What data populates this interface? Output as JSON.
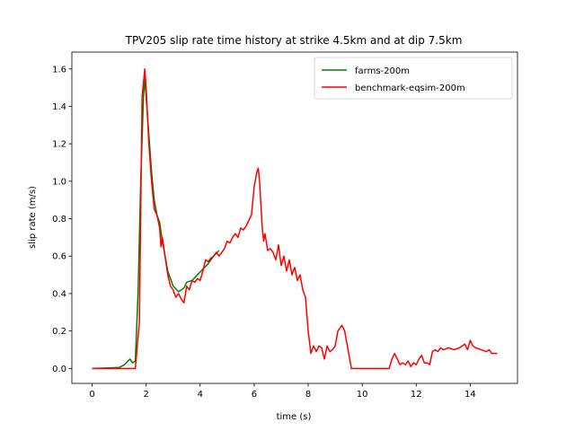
{
  "chart_data": {
    "type": "line",
    "title": "TPV205 slip rate time history at strike 4.5km and at dip 7.5km",
    "x_label": "time (s)",
    "y_label": "slip rate (m/s)",
    "xlim": [
      -0.75,
      15.75
    ],
    "xticks": [
      0,
      2,
      4,
      6,
      8,
      10,
      12,
      14
    ],
    "ylim": [
      -0.08,
      1.69
    ],
    "yticks": [
      {
        "value": 0,
        "label": "0.0"
      },
      0.2,
      0.4,
      0.6,
      0.8,
      {
        "value": 1,
        "label": "1.0"
      },
      1.2,
      1.4,
      1.6
    ],
    "legend": "upper right",
    "series": [
      {
        "name": "farms-200m",
        "color": "#008000",
        "x": [
          0,
          1.0,
          1.2,
          1.4,
          1.5,
          1.6,
          1.7,
          1.8,
          1.9,
          1.95,
          2.0,
          2.1,
          2.2,
          2.3,
          2.4,
          2.5,
          2.6,
          2.7,
          2.8,
          2.9,
          3.0,
          3.2,
          3.4,
          3.5,
          3.7,
          3.9,
          4.1,
          4.3,
          4.5,
          4.7
        ],
        "values": [
          0,
          0.005,
          0.02,
          0.05,
          0.03,
          0.04,
          0.4,
          1.0,
          1.45,
          1.55,
          1.45,
          1.25,
          1.05,
          0.9,
          0.82,
          0.78,
          0.68,
          0.6,
          0.52,
          0.48,
          0.44,
          0.41,
          0.43,
          0.46,
          0.47,
          0.5,
          0.53,
          0.56,
          0.6,
          0.63
        ]
      },
      {
        "name": "benchmark-eqsim-200m",
        "color": "#ff0000",
        "x": [
          0,
          1.6,
          1.75,
          1.85,
          1.95,
          2.0,
          2.1,
          2.2,
          2.3,
          2.4,
          2.5,
          2.55,
          2.6,
          2.7,
          2.8,
          2.9,
          3.0,
          3.1,
          3.2,
          3.3,
          3.4,
          3.5,
          3.6,
          3.7,
          3.8,
          3.9,
          4.0,
          4.1,
          4.2,
          4.3,
          4.4,
          4.5,
          4.6,
          4.7,
          4.8,
          4.9,
          5.0,
          5.1,
          5.2,
          5.3,
          5.4,
          5.5,
          5.6,
          5.7,
          5.8,
          5.9,
          6.0,
          6.1,
          6.15,
          6.2,
          6.3,
          6.35,
          6.4,
          6.5,
          6.6,
          6.7,
          6.8,
          6.9,
          7.0,
          7.1,
          7.2,
          7.3,
          7.4,
          7.5,
          7.6,
          7.7,
          7.8,
          7.9,
          8.0,
          8.1,
          8.2,
          8.3,
          8.4,
          8.5,
          8.6,
          8.7,
          8.8,
          8.9,
          9.0,
          9.1,
          9.2,
          9.25,
          9.35,
          9.5,
          9.6,
          11.0,
          11.1,
          11.2,
          11.3,
          11.4,
          11.5,
          11.6,
          11.7,
          11.8,
          11.9,
          12.0,
          12.1,
          12.2,
          12.3,
          12.4,
          12.5,
          12.6,
          12.7,
          12.8,
          12.9,
          13.0,
          13.2,
          13.4,
          13.6,
          13.8,
          13.9,
          14.0,
          14.1,
          14.2,
          14.4,
          14.6,
          14.7,
          14.8,
          15.0
        ],
        "values": [
          0,
          0,
          0.25,
          1.45,
          1.6,
          1.5,
          1.2,
          1.0,
          0.85,
          0.82,
          0.75,
          0.65,
          0.7,
          0.6,
          0.5,
          0.44,
          0.42,
          0.38,
          0.4,
          0.37,
          0.35,
          0.44,
          0.42,
          0.47,
          0.46,
          0.48,
          0.47,
          0.52,
          0.58,
          0.57,
          0.59,
          0.6,
          0.62,
          0.6,
          0.62,
          0.64,
          0.68,
          0.67,
          0.7,
          0.72,
          0.7,
          0.75,
          0.74,
          0.76,
          0.79,
          0.82,
          0.97,
          1.05,
          1.07,
          1.0,
          0.75,
          0.68,
          0.72,
          0.63,
          0.64,
          0.62,
          0.58,
          0.66,
          0.55,
          0.6,
          0.52,
          0.58,
          0.5,
          0.54,
          0.47,
          0.5,
          0.42,
          0.38,
          0.2,
          0.08,
          0.12,
          0.09,
          0.12,
          0.11,
          0.05,
          0.12,
          0.09,
          0.1,
          0.12,
          0.2,
          0.22,
          0.23,
          0.2,
          0.08,
          0,
          0,
          0.05,
          0.08,
          0.05,
          0.02,
          0.03,
          0.02,
          0.04,
          0.01,
          0.03,
          0.02,
          0.05,
          0.07,
          0.03,
          0.03,
          0.02,
          0.09,
          0.1,
          0.09,
          0.11,
          0.1,
          0.11,
          0.1,
          0.11,
          0.13,
          0.1,
          0.15,
          0.12,
          0.11,
          0.1,
          0.09,
          0.1,
          0.08,
          0.08
        ]
      }
    ]
  }
}
